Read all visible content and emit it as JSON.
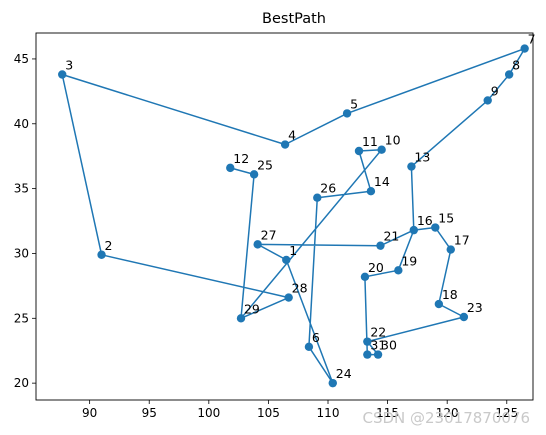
{
  "chart_data": {
    "type": "line",
    "title": "BestPath",
    "xlabel": "",
    "ylabel": "",
    "xlim": [
      85.5,
      127.2
    ],
    "ylim": [
      18.7,
      47.0
    ],
    "xticks": [
      90,
      95,
      100,
      105,
      110,
      115,
      120,
      125
    ],
    "yticks": [
      20,
      25,
      30,
      35,
      40,
      45
    ],
    "grid": false,
    "line_color": "#1f77b4",
    "marker_color": "#1f77b4",
    "points": [
      {
        "label": "1",
        "x": 106.5,
        "y": 29.5
      },
      {
        "label": "2",
        "x": 91.0,
        "y": 29.9
      },
      {
        "label": "3",
        "x": 87.7,
        "y": 43.8
      },
      {
        "label": "4",
        "x": 106.4,
        "y": 38.4
      },
      {
        "label": "5",
        "x": 111.6,
        "y": 40.8
      },
      {
        "label": "6",
        "x": 108.4,
        "y": 22.8
      },
      {
        "label": "7",
        "x": 126.5,
        "y": 45.8
      },
      {
        "label": "8",
        "x": 125.2,
        "y": 43.8
      },
      {
        "label": "9",
        "x": 123.4,
        "y": 41.8
      },
      {
        "label": "10",
        "x": 114.5,
        "y": 38.0
      },
      {
        "label": "11",
        "x": 112.6,
        "y": 37.9
      },
      {
        "label": "12",
        "x": 101.8,
        "y": 36.6
      },
      {
        "label": "13",
        "x": 117.0,
        "y": 36.7
      },
      {
        "label": "14",
        "x": 113.6,
        "y": 34.8
      },
      {
        "label": "15",
        "x": 119.0,
        "y": 32.0
      },
      {
        "label": "16",
        "x": 117.2,
        "y": 31.8
      },
      {
        "label": "17",
        "x": 120.3,
        "y": 30.3
      },
      {
        "label": "18",
        "x": 119.3,
        "y": 26.1
      },
      {
        "label": "19",
        "x": 115.9,
        "y": 28.7
      },
      {
        "label": "20",
        "x": 113.1,
        "y": 28.2
      },
      {
        "label": "21",
        "x": 114.4,
        "y": 30.6
      },
      {
        "label": "22",
        "x": 113.3,
        "y": 23.2
      },
      {
        "label": "23",
        "x": 121.4,
        "y": 25.1
      },
      {
        "label": "24",
        "x": 110.4,
        "y": 20.0
      },
      {
        "label": "25",
        "x": 103.8,
        "y": 36.1
      },
      {
        "label": "26",
        "x": 109.1,
        "y": 34.3
      },
      {
        "label": "27",
        "x": 104.1,
        "y": 30.7
      },
      {
        "label": "28",
        "x": 106.7,
        "y": 26.6
      },
      {
        "label": "29",
        "x": 102.7,
        "y": 25.0
      },
      {
        "label": "30",
        "x": 114.2,
        "y": 22.2
      },
      {
        "label": "31",
        "x": 113.3,
        "y": 22.2
      }
    ],
    "path_order": [
      "1",
      "27",
      "21",
      "16",
      "15",
      "17",
      "18",
      "23",
      "22",
      "30",
      "31",
      "20",
      "19",
      "16",
      "13",
      "9",
      "8",
      "7",
      "5",
      "4",
      "3",
      "2",
      "28",
      "29",
      "25",
      "12",
      "25",
      "29",
      "10",
      "11",
      "14",
      "26",
      "6",
      "24",
      "1"
    ]
  },
  "watermark": "CSDN @23017870076"
}
